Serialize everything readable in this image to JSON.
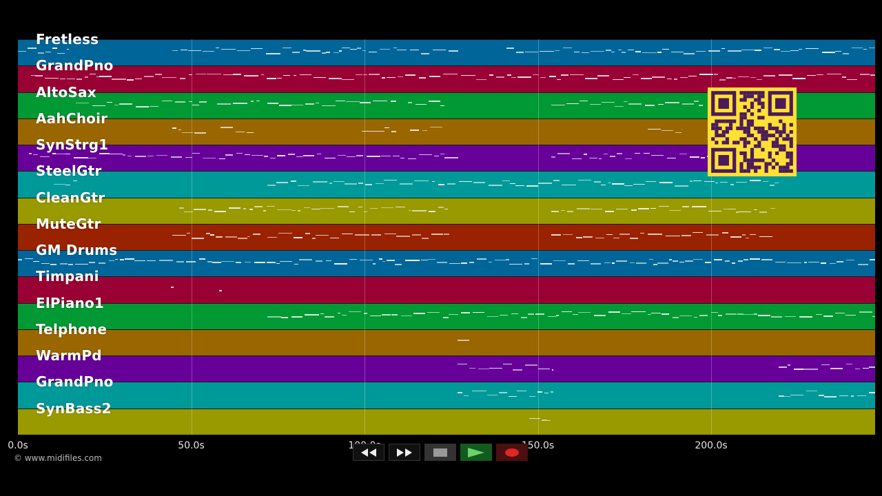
{
  "tracks": [
    {
      "name": "Fretless",
      "color": "#006699"
    },
    {
      "name": "GrandPno",
      "color": "#990033"
    },
    {
      "name": "AltoSax",
      "color": "#009933"
    },
    {
      "name": "AahChoir",
      "color": "#996600"
    },
    {
      "name": "SynStrg1",
      "color": "#660099"
    },
    {
      "name": "SteelGtr",
      "color": "#009999"
    },
    {
      "name": "CleanGtr",
      "color": "#999900"
    },
    {
      "name": "MuteGtr",
      "color": "#992200"
    },
    {
      "name": "GM Drums",
      "color": "#006699"
    },
    {
      "name": "Timpani",
      "color": "#990033"
    },
    {
      "name": "ElPiano1",
      "color": "#009933"
    },
    {
      "name": "Telphone",
      "color": "#996600"
    },
    {
      "name": "WarmPd",
      "color": "#660099"
    },
    {
      "name": "GrandPno",
      "color": "#009999"
    },
    {
      "name": "SynBass2",
      "color": "#999900"
    }
  ],
  "time_axis": {
    "ticks": [
      {
        "label": "0.0s",
        "value": 0
      },
      {
        "label": "50.0s",
        "value": 50
      },
      {
        "label": "100.0s",
        "value": 100
      },
      {
        "label": "150.0s",
        "value": 150
      },
      {
        "label": "200.0s",
        "value": 200
      }
    ],
    "max_seconds": 247
  },
  "copyright": "© www.midifiles.com",
  "transport": {
    "rewind": "rewind-icon",
    "fast_forward": "fast-forward-icon",
    "stop": "stop-icon",
    "play": "play-icon",
    "record": "record-icon"
  },
  "colors": {
    "background": "#000000",
    "qr_background": "#ffe033",
    "qr_foreground": "#4a1a5c",
    "note": "#f4f4f4"
  }
}
